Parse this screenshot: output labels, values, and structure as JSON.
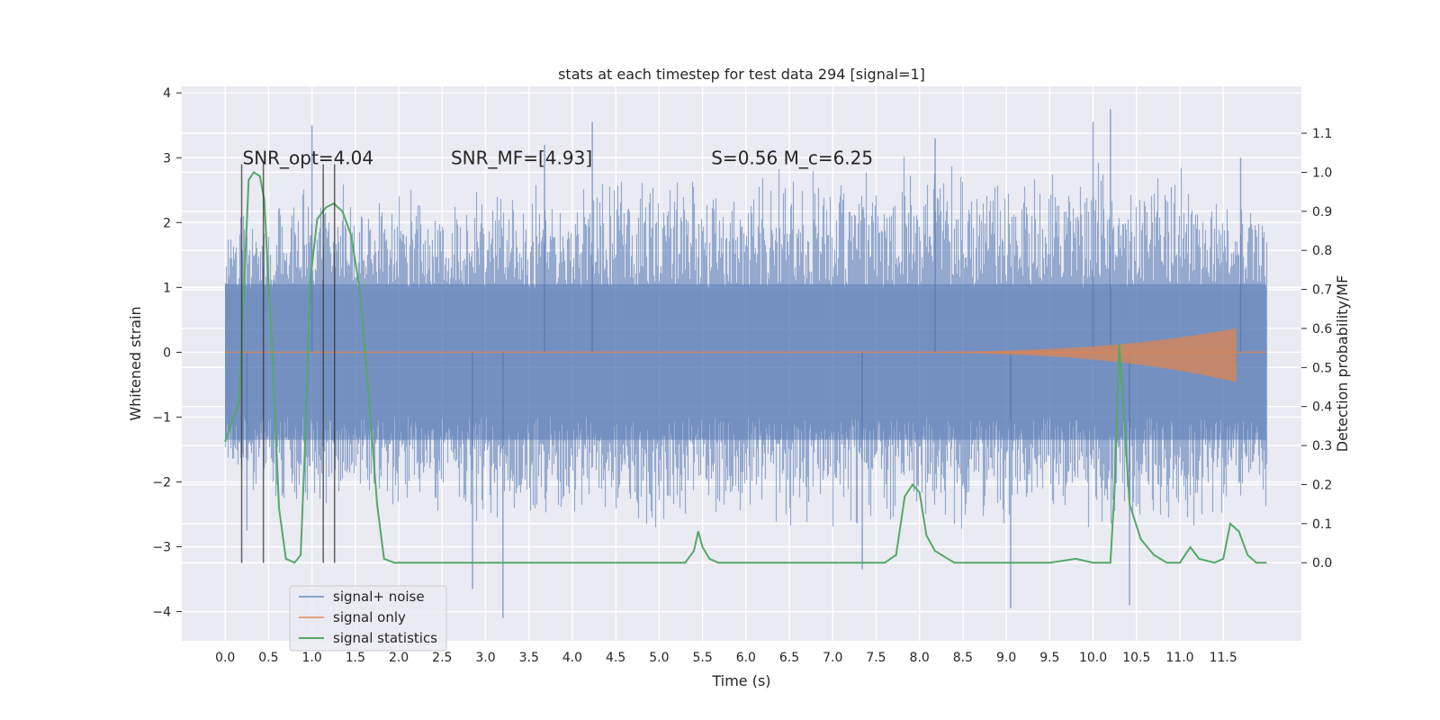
{
  "chart_data": {
    "type": "line",
    "title": "stats at each timestep for test data 294 [signal=1]",
    "xlabel": "Time (s)",
    "ylabel": "Whitened strain",
    "y2label": "Detection probability/MF",
    "xlim": [
      -0.5,
      12.4
    ],
    "ylim": [
      -4.45,
      4.1
    ],
    "y2lim": [
      -0.2,
      1.22
    ],
    "xticks": [
      0.0,
      0.5,
      1.0,
      1.5,
      2.0,
      2.5,
      3.0,
      3.5,
      4.0,
      4.5,
      5.0,
      5.5,
      6.0,
      6.5,
      7.0,
      7.5,
      8.0,
      8.5,
      9.0,
      9.5,
      10.0,
      10.5,
      11.0,
      11.5
    ],
    "xtick_labels": [
      "0.0",
      "0.5",
      "1.0",
      "1.5",
      "2.0",
      "2.5",
      "3.0",
      "3.5",
      "4.0",
      "4.5",
      "5.0",
      "5.5",
      "6.0",
      "6.5",
      "7.0",
      "7.5",
      "8.0",
      "8.5",
      "9.0",
      "9.5",
      "10.0",
      "10.5",
      "11.0",
      "11.5"
    ],
    "yticks": [
      -4,
      -3,
      -2,
      -1,
      0,
      1,
      2,
      3,
      4
    ],
    "ytick_labels": [
      "−4",
      "−3",
      "−2",
      "−1",
      "0",
      "1",
      "2",
      "3",
      "4"
    ],
    "y2ticks": [
      0.0,
      0.1,
      0.2,
      0.3,
      0.4,
      0.5,
      0.6,
      0.7,
      0.8,
      0.9,
      1.0,
      1.1
    ],
    "y2tick_labels": [
      "0.0",
      "0.1",
      "0.2",
      "0.3",
      "0.4",
      "0.5",
      "0.6",
      "0.7",
      "0.8",
      "0.9",
      "1.0",
      "1.1"
    ],
    "grid": true,
    "legend_position": "lower-left",
    "annotations": [
      {
        "text": "SNR_opt=4.04",
        "x": 0.2,
        "y": 3.0
      },
      {
        "text": "SNR_MF=[4.93]",
        "x": 2.6,
        "y": 3.0
      },
      {
        "text": "S=0.56   M_c=6.25",
        "x": 5.6,
        "y": 3.0
      }
    ],
    "vertical_markers_x": [
      0.19,
      0.44,
      1.13,
      1.26
    ],
    "vertical_marker_y_range": [
      -3.25,
      2.9
    ],
    "series": [
      {
        "name": "signal+ noise",
        "color": "#4c72b0",
        "axis": "left",
        "x_range": [
          0.0,
          12.0
        ],
        "envelope_upper": [
          [
            0.0,
            1.9
          ],
          [
            0.5,
            2.2
          ],
          [
            1.0,
            2.5
          ],
          [
            1.5,
            2.4
          ],
          [
            2.0,
            2.3
          ],
          [
            3.0,
            2.5
          ],
          [
            4.0,
            2.5
          ],
          [
            5.0,
            2.7
          ],
          [
            6.0,
            2.6
          ],
          [
            7.0,
            2.7
          ],
          [
            8.0,
            2.8
          ],
          [
            9.0,
            2.7
          ],
          [
            10.0,
            2.8
          ],
          [
            11.0,
            2.7
          ],
          [
            12.0,
            2.1
          ]
        ],
        "envelope_lower": [
          [
            0.0,
            -1.8
          ],
          [
            0.5,
            -2.4
          ],
          [
            1.0,
            -2.2
          ],
          [
            1.5,
            -2.4
          ],
          [
            2.0,
            -2.2
          ],
          [
            3.0,
            -2.6
          ],
          [
            4.0,
            -2.5
          ],
          [
            5.0,
            -2.6
          ],
          [
            6.0,
            -2.5
          ],
          [
            7.0,
            -2.6
          ],
          [
            8.0,
            -2.6
          ],
          [
            9.0,
            -2.7
          ],
          [
            10.0,
            -2.6
          ],
          [
            11.0,
            -2.6
          ],
          [
            12.0,
            -2.3
          ]
        ],
        "spikes": [
          [
            0.25,
            -2.75
          ],
          [
            1.0,
            3.5
          ],
          [
            2.85,
            -3.65
          ],
          [
            3.2,
            -4.1
          ],
          [
            3.68,
            3.2
          ],
          [
            4.23,
            3.55
          ],
          [
            7.34,
            -3.35
          ],
          [
            8.18,
            3.3
          ],
          [
            9.05,
            -3.95
          ],
          [
            10.0,
            3.55
          ],
          [
            10.2,
            3.75
          ],
          [
            10.42,
            -3.9
          ],
          [
            11.7,
            3.0
          ]
        ]
      },
      {
        "name": "signal only",
        "color": "#dd8452",
        "axis": "left",
        "chirp_start_x": 7.0,
        "chirp_end_x": 11.65,
        "chirp_max_amplitude": 0.37
      },
      {
        "name": "signal statistics",
        "color": "#55a868",
        "axis": "right",
        "points": [
          [
            0.0,
            0.31
          ],
          [
            0.16,
            0.41
          ],
          [
            0.27,
            0.98
          ],
          [
            0.33,
            1.0
          ],
          [
            0.4,
            0.99
          ],
          [
            0.45,
            0.93
          ],
          [
            0.55,
            0.5
          ],
          [
            0.62,
            0.14
          ],
          [
            0.7,
            0.01
          ],
          [
            0.8,
            0.0
          ],
          [
            0.87,
            0.02
          ],
          [
            0.92,
            0.3
          ],
          [
            0.98,
            0.72
          ],
          [
            1.06,
            0.88
          ],
          [
            1.16,
            0.91
          ],
          [
            1.25,
            0.92
          ],
          [
            1.35,
            0.9
          ],
          [
            1.45,
            0.84
          ],
          [
            1.55,
            0.7
          ],
          [
            1.65,
            0.44
          ],
          [
            1.75,
            0.15
          ],
          [
            1.83,
            0.01
          ],
          [
            1.95,
            0.0
          ],
          [
            2.5,
            0.0
          ],
          [
            3.0,
            0.0
          ],
          [
            3.2,
            0.0
          ],
          [
            3.5,
            0.0
          ],
          [
            4.0,
            0.0
          ],
          [
            4.5,
            0.0
          ],
          [
            4.8,
            0.0
          ],
          [
            5.3,
            0.0
          ],
          [
            5.4,
            0.03
          ],
          [
            5.45,
            0.08
          ],
          [
            5.5,
            0.04
          ],
          [
            5.58,
            0.01
          ],
          [
            5.68,
            0.0
          ],
          [
            6.0,
            0.0
          ],
          [
            6.5,
            0.0
          ],
          [
            7.0,
            0.0
          ],
          [
            7.6,
            0.0
          ],
          [
            7.73,
            0.02
          ],
          [
            7.83,
            0.17
          ],
          [
            7.92,
            0.2
          ],
          [
            8.0,
            0.18
          ],
          [
            8.08,
            0.07
          ],
          [
            8.18,
            0.03
          ],
          [
            8.4,
            0.0
          ],
          [
            9.0,
            0.0
          ],
          [
            9.5,
            0.0
          ],
          [
            9.8,
            0.01
          ],
          [
            10.0,
            0.0
          ],
          [
            10.2,
            0.0
          ],
          [
            10.25,
            0.2
          ],
          [
            10.3,
            0.56
          ],
          [
            10.35,
            0.4
          ],
          [
            10.42,
            0.15
          ],
          [
            10.55,
            0.06
          ],
          [
            10.7,
            0.02
          ],
          [
            10.85,
            0.0
          ],
          [
            11.0,
            0.0
          ],
          [
            11.12,
            0.04
          ],
          [
            11.22,
            0.01
          ],
          [
            11.4,
            0.0
          ],
          [
            11.5,
            0.01
          ],
          [
            11.58,
            0.1
          ],
          [
            11.68,
            0.08
          ],
          [
            11.78,
            0.02
          ],
          [
            11.88,
            0.0
          ],
          [
            12.0,
            0.0
          ]
        ]
      }
    ]
  }
}
